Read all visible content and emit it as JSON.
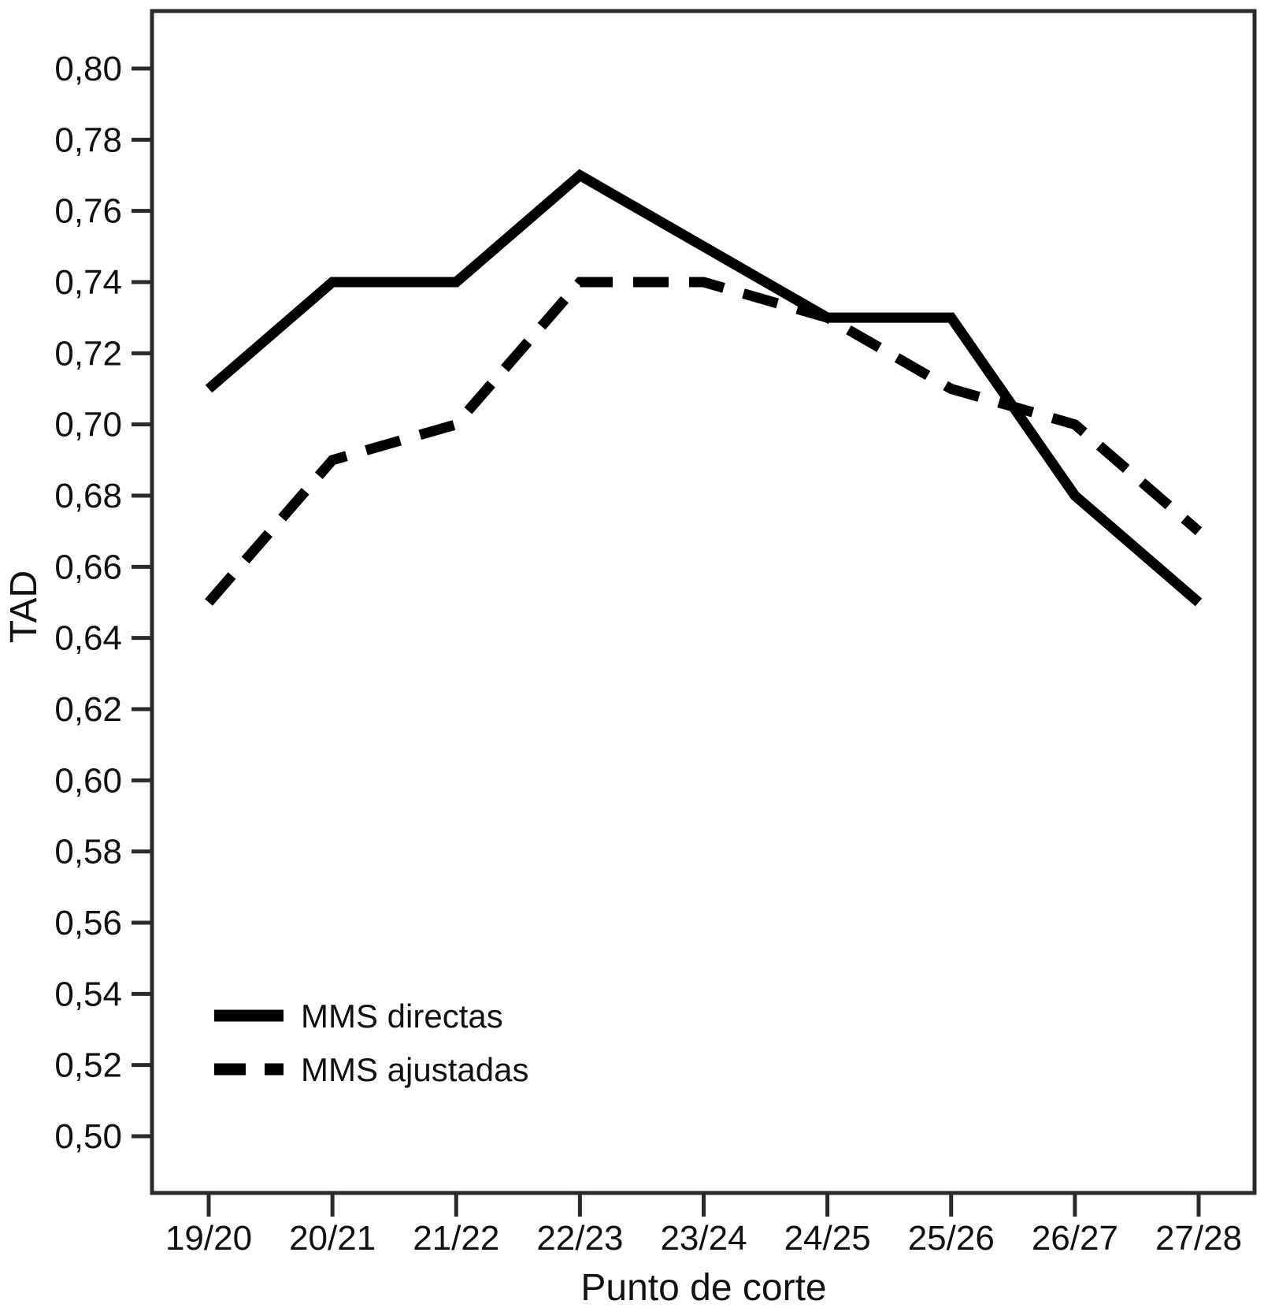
{
  "chart_data": {
    "type": "line",
    "title": "",
    "xlabel": "Punto de corte",
    "ylabel": "TAD",
    "categories": [
      "19/20",
      "20/21",
      "21/22",
      "22/23",
      "23/24",
      "24/25",
      "25/26",
      "26/27",
      "27/28"
    ],
    "series": [
      {
        "name": "MMS directas",
        "line_style": "solid",
        "color": "#000000",
        "values": [
          0.71,
          0.74,
          0.74,
          0.77,
          0.75,
          0.73,
          0.73,
          0.68,
          0.65
        ]
      },
      {
        "name": "MMS ajustadas",
        "line_style": "dashed",
        "color": "#000000",
        "values": [
          0.65,
          0.69,
          0.7,
          0.74,
          0.74,
          0.73,
          0.71,
          0.7,
          0.67
        ]
      }
    ],
    "ylim": [
      0.5,
      0.8
    ],
    "y_tick_step": 0.02,
    "y_tick_labels": [
      "0,50",
      "0,52",
      "0,54",
      "0,56",
      "0,58",
      "0,60",
      "0,62",
      "0,64",
      "0,66",
      "0,68",
      "0,70",
      "0,72",
      "0,74",
      "0,76",
      "0,78",
      "0,80"
    ],
    "decimal_separator": ",",
    "grid": false,
    "legend": {
      "position": "inside-bottom-left",
      "items": [
        "MMS directas",
        "MMS ajustadas"
      ]
    },
    "axis_color": "#2a2a2a",
    "text_color": "#111111",
    "background": "#ffffff"
  }
}
